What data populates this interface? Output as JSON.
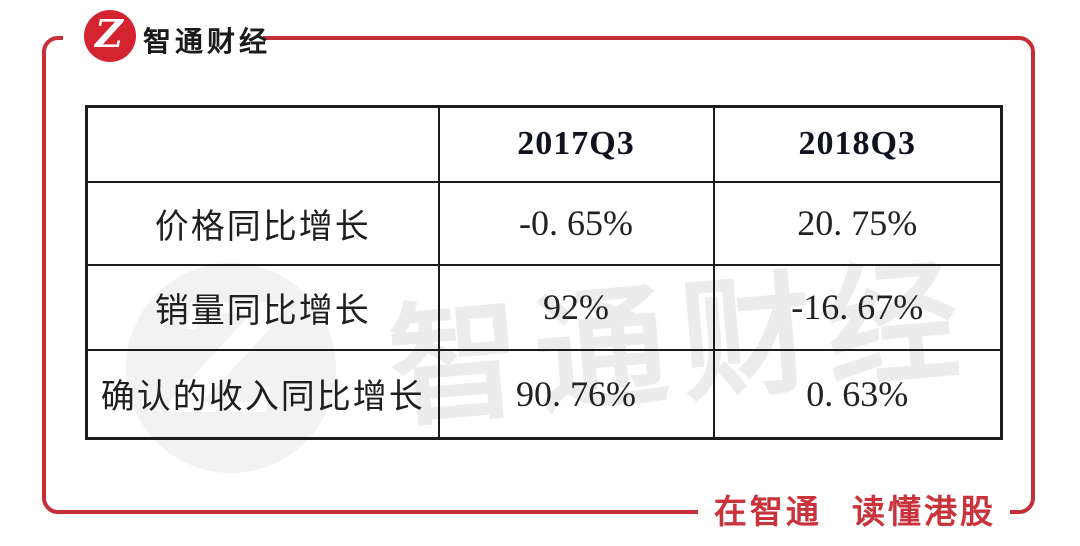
{
  "brand": {
    "name": "智通财经",
    "logo_letter": "Z"
  },
  "table": {
    "columns": [
      "",
      "2017Q3",
      "2018Q3"
    ],
    "rows": [
      {
        "label": "价格同比增长",
        "values": [
          "-0. 65%",
          "20. 75%"
        ]
      },
      {
        "label": "销量同比增长",
        "values": [
          "92%",
          "-16. 67%"
        ]
      },
      {
        "label": "确认的收入同比增长",
        "values": [
          "90. 76%",
          "0. 63%"
        ]
      }
    ]
  },
  "chart_data": {
    "type": "table",
    "title": "",
    "categories": [
      "2017Q3",
      "2018Q3"
    ],
    "series": [
      {
        "name": "价格同比增长",
        "values": [
          -0.65,
          20.75
        ],
        "unit": "%"
      },
      {
        "name": "销量同比增长",
        "values": [
          92,
          -16.67
        ],
        "unit": "%"
      },
      {
        "name": "确认的收入同比增长",
        "values": [
          90.76,
          0.63
        ],
        "unit": "%"
      }
    ]
  },
  "watermark": {
    "text": "智通财经"
  },
  "slogan": {
    "text": "在智通 读懂港股"
  },
  "colors": {
    "accent_red": "#c42f38",
    "logo_red": "#d4242f",
    "slogan_red": "#c8333c",
    "header_bg": "#dce7f2",
    "table_border": "#1c1c1c"
  }
}
